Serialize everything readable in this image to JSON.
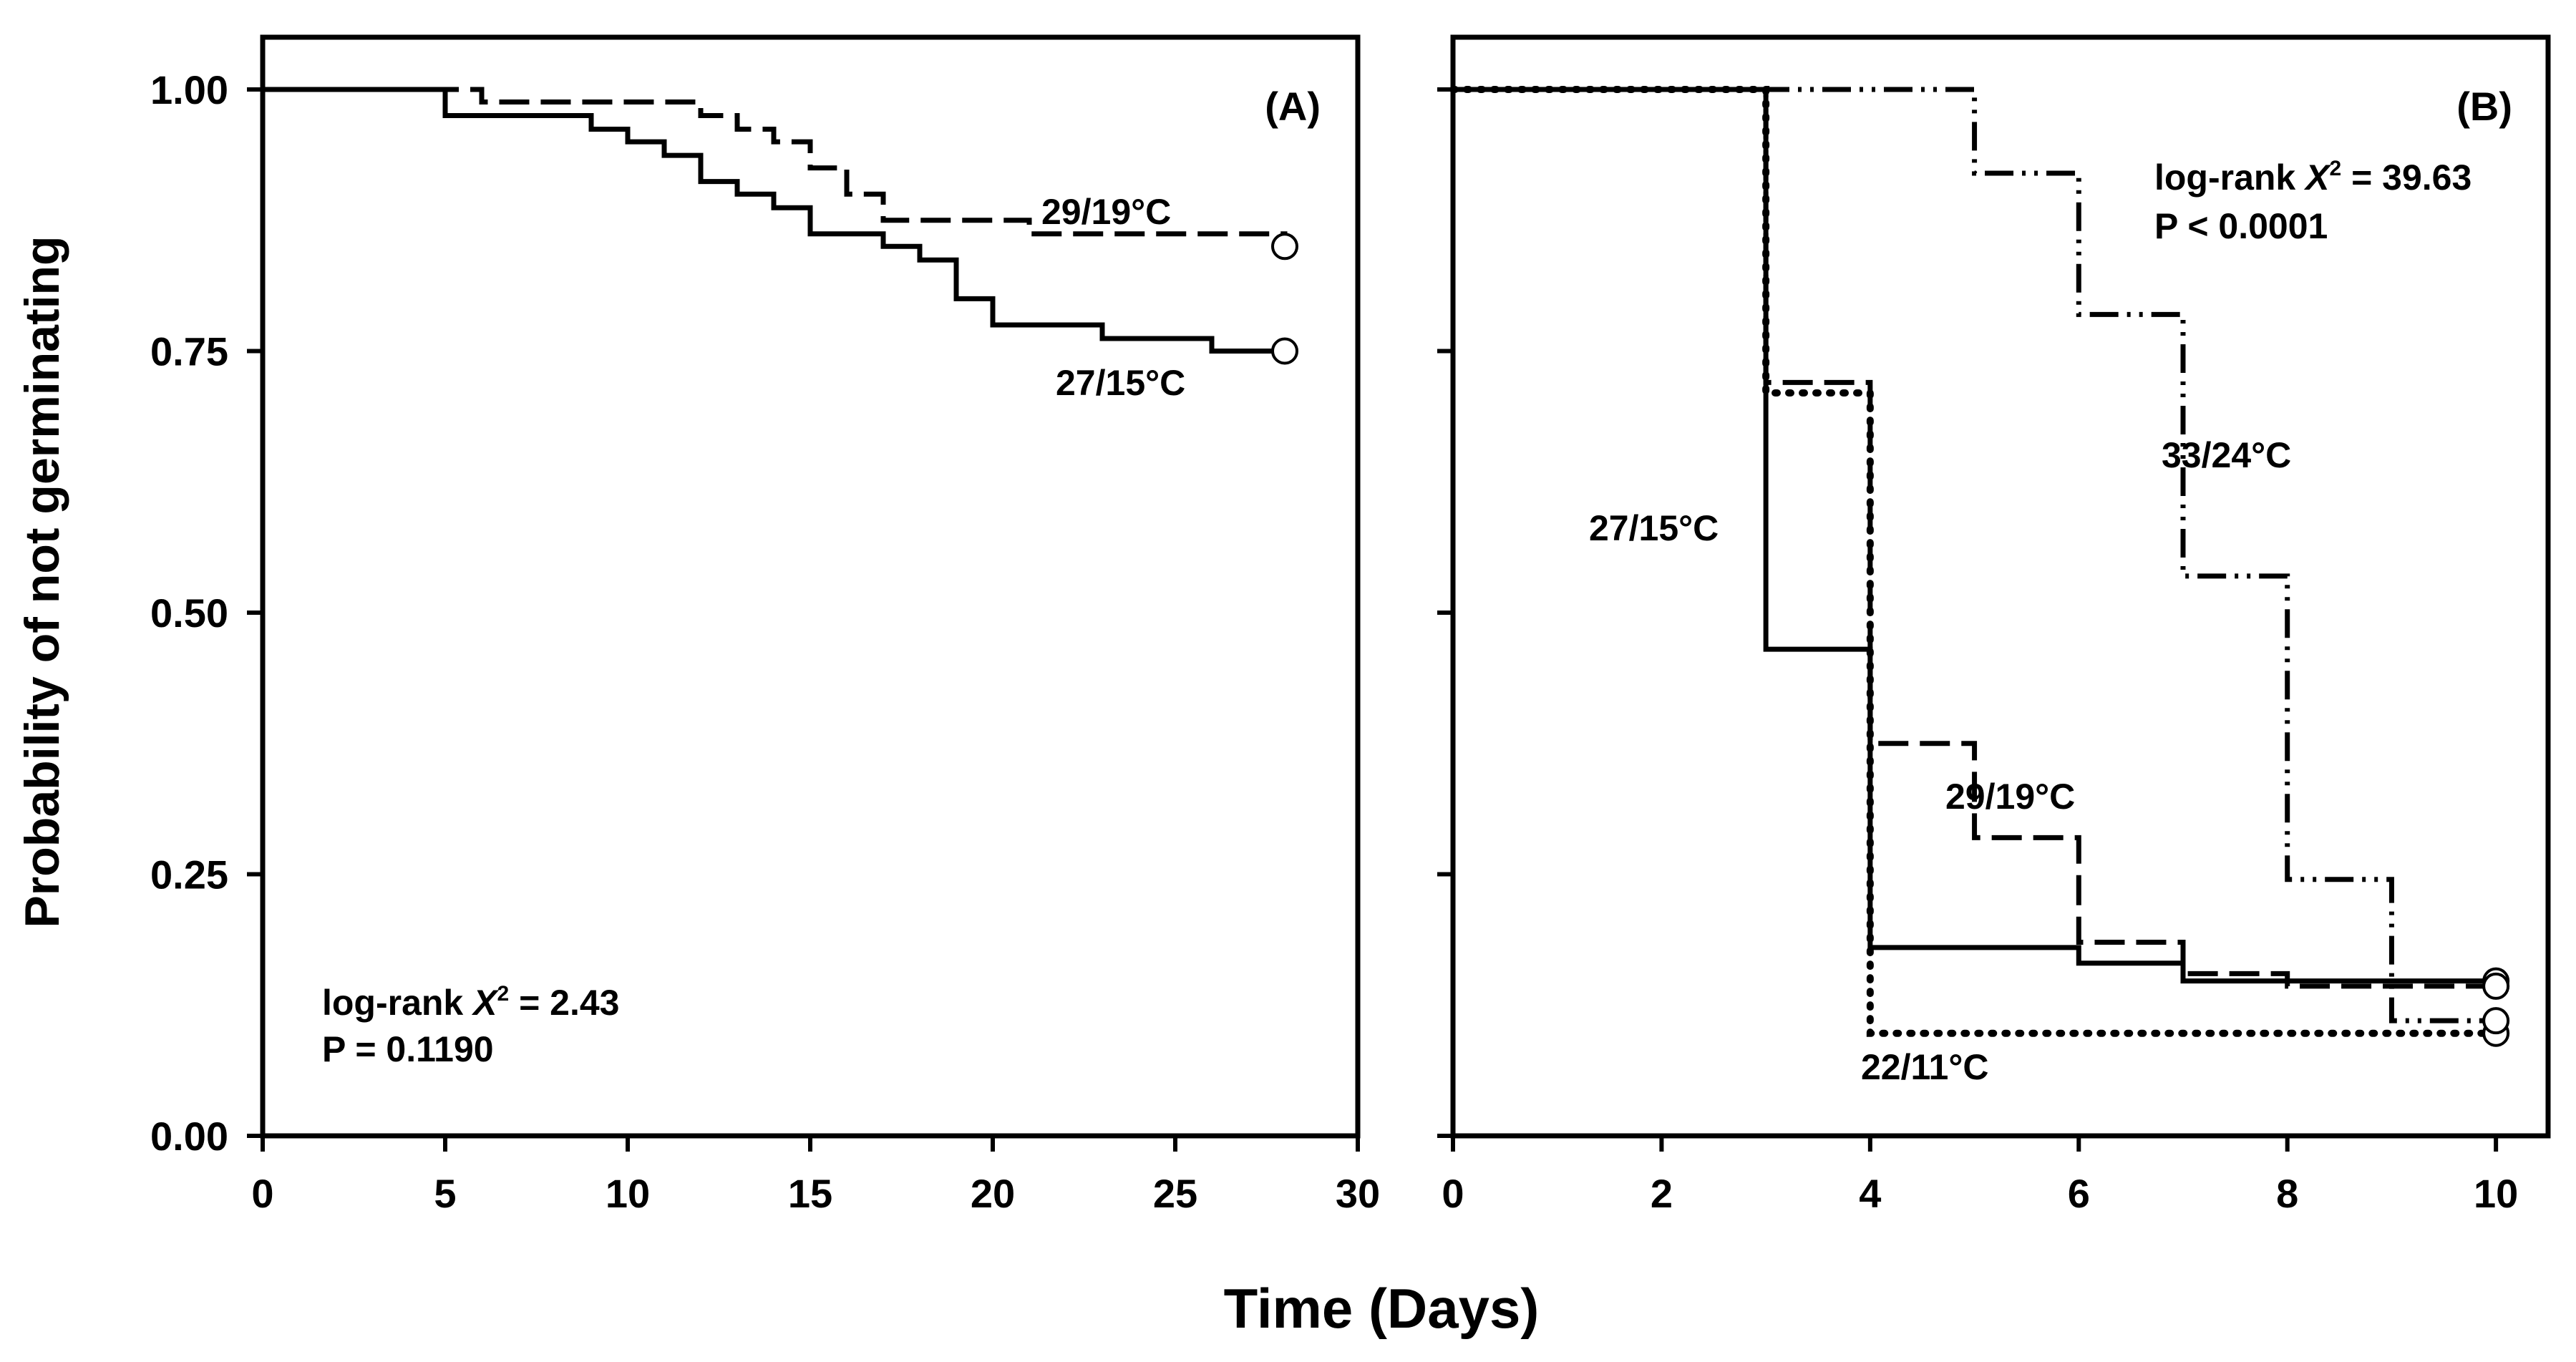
{
  "chart_data": [
    {
      "type": "line",
      "step": true,
      "panel_label": "(A)",
      "ylabel": "Probability of not germinating",
      "xlim": [
        0,
        30
      ],
      "ylim": [
        0,
        1.0
      ],
      "x_ticks": [
        "0",
        "5",
        "10",
        "15",
        "20",
        "25",
        "30"
      ],
      "y_ticks": [
        "0.00",
        "0.25",
        "0.50",
        "0.75",
        "1.00"
      ],
      "stat_line1": "log-rank ",
      "stat_chi": "X",
      "stat_sup": "2",
      "stat_value": " = 2.43",
      "stat_line2": "P = 0.1190",
      "series": [
        {
          "name": "27/15°C",
          "style": "solid",
          "points": [
            [
              0,
              1.0
            ],
            [
              5,
              0.975
            ],
            [
              9,
              0.962
            ],
            [
              10,
              0.95
            ],
            [
              11,
              0.937
            ],
            [
              12,
              0.912
            ],
            [
              13,
              0.9
            ],
            [
              14,
              0.887
            ],
            [
              15,
              0.862
            ],
            [
              17,
              0.85
            ],
            [
              18,
              0.837
            ],
            [
              19,
              0.8
            ],
            [
              20,
              0.775
            ],
            [
              23,
              0.762
            ],
            [
              26,
              0.75
            ],
            [
              28,
              0.75
            ]
          ],
          "censor": [
            28,
            0.75
          ]
        },
        {
          "name": "29/19°C",
          "style": "dashed",
          "points": [
            [
              0,
              1.0
            ],
            [
              6,
              0.988
            ],
            [
              12,
              0.975
            ],
            [
              13,
              0.962
            ],
            [
              14,
              0.95
            ],
            [
              15,
              0.925
            ],
            [
              16,
              0.9
            ],
            [
              17,
              0.875
            ],
            [
              21,
              0.862
            ],
            [
              28,
              0.85
            ]
          ],
          "censor": [
            28,
            0.85
          ]
        }
      ]
    },
    {
      "type": "line",
      "step": true,
      "panel_label": "(B)",
      "xlim": [
        0,
        10.5
      ],
      "ylim": [
        0,
        1.0
      ],
      "x_ticks": [
        "0",
        "2",
        "4",
        "6",
        "8",
        "10"
      ],
      "stat_line1": "log-rank ",
      "stat_chi": "X",
      "stat_sup": "2",
      "stat_value": " = 39.63",
      "stat_line2": "P < 0.0001",
      "series": [
        {
          "name": "27/15°C",
          "style": "solid",
          "points": [
            [
              0,
              1.0
            ],
            [
              3,
              0.465
            ],
            [
              4,
              0.18
            ],
            [
              6,
              0.165
            ],
            [
              7,
              0.148
            ],
            [
              10,
              0.148
            ]
          ],
          "censor": [
            10,
            0.148
          ]
        },
        {
          "name": "29/19°C",
          "style": "dashed",
          "points": [
            [
              0,
              1.0
            ],
            [
              3,
              0.72
            ],
            [
              4,
              0.375
            ],
            [
              5,
              0.285
            ],
            [
              6,
              0.185
            ],
            [
              7,
              0.155
            ],
            [
              8,
              0.143
            ],
            [
              10,
              0.143
            ]
          ],
          "censor": [
            10,
            0.143
          ]
        },
        {
          "name": "22/11°C",
          "style": "dotted",
          "points": [
            [
              0,
              1.0
            ],
            [
              3,
              0.71
            ],
            [
              4,
              0.098
            ],
            [
              10,
              0.098
            ]
          ],
          "censor": [
            10,
            0.098
          ]
        },
        {
          "name": "33/24°C",
          "style": "dashdot",
          "points": [
            [
              0,
              1.0
            ],
            [
              5,
              0.92
            ],
            [
              6,
              0.785
            ],
            [
              7,
              0.535
            ],
            [
              8,
              0.245
            ],
            [
              9,
              0.11
            ],
            [
              10,
              0.11
            ]
          ],
          "censor": [
            10,
            0.11
          ]
        }
      ]
    }
  ],
  "shared_xlabel": "Time (Days)"
}
